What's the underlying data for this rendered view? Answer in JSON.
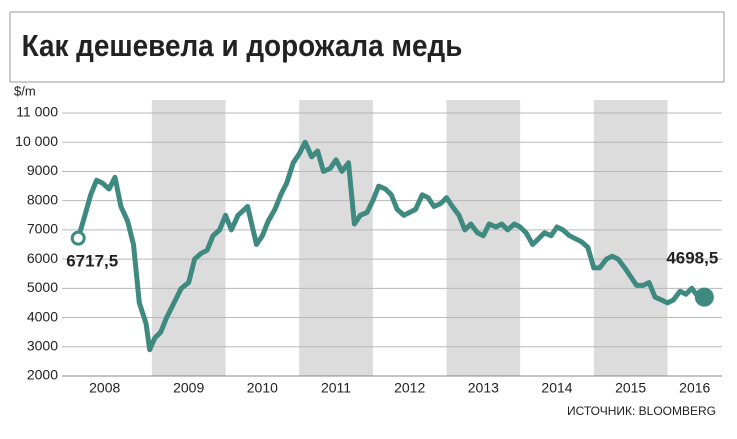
{
  "chart_data": {
    "type": "line",
    "title": "Как дешевела и дорожала медь",
    "y_label": "$/m",
    "source": "ИСТОЧНИК: BLOOMBERG",
    "xlim": [
      2007.78,
      2016.74
    ],
    "ylim": [
      2000,
      11000
    ],
    "yticks": [
      {
        "value": 11000,
        "label": "11 000"
      },
      {
        "value": 10000,
        "label": "10 000"
      },
      9000,
      8000,
      7000,
      6000,
      5000,
      4000,
      3000,
      2000
    ],
    "xticks": [
      {
        "value": 2008.36,
        "label": "2008"
      },
      {
        "value": 2009.5,
        "label": "2009"
      },
      {
        "value": 2010.5,
        "label": "2010"
      },
      {
        "value": 2011.5,
        "label": "2011"
      },
      {
        "value": 2012.5,
        "label": "2012"
      },
      {
        "value": 2013.5,
        "label": "2013"
      },
      {
        "value": 2014.5,
        "label": "2014"
      },
      {
        "value": 2015.5,
        "label": "2015"
      },
      {
        "value": 2016.37,
        "label": "2016"
      }
    ],
    "shaded_years": [
      2009,
      2011,
      2013,
      2015
    ],
    "grid": true,
    "series": [
      {
        "color": "#3f8a80",
        "x": [
          2008.0,
          2008.08,
          2008.17,
          2008.25,
          2008.33,
          2008.42,
          2008.5,
          2008.58,
          2008.67,
          2008.75,
          2008.83,
          2008.92,
          2008.97,
          2009.04,
          2009.12,
          2009.2,
          2009.3,
          2009.4,
          2009.5,
          2009.58,
          2009.67,
          2009.75,
          2009.83,
          2009.92,
          2010.0,
          2010.08,
          2010.17,
          2010.3,
          2010.42,
          2010.5,
          2010.58,
          2010.67,
          2010.75,
          2010.83,
          2010.92,
          2011.0,
          2011.08,
          2011.17,
          2011.25,
          2011.33,
          2011.42,
          2011.5,
          2011.58,
          2011.67,
          2011.75,
          2011.83,
          2011.92,
          2012.0,
          2012.08,
          2012.17,
          2012.25,
          2012.33,
          2012.42,
          2012.5,
          2012.58,
          2012.67,
          2012.75,
          2012.83,
          2012.92,
          2013.0,
          2013.08,
          2013.17,
          2013.25,
          2013.33,
          2013.42,
          2013.5,
          2013.58,
          2013.67,
          2013.75,
          2013.83,
          2013.92,
          2014.0,
          2014.08,
          2014.17,
          2014.25,
          2014.33,
          2014.42,
          2014.5,
          2014.58,
          2014.67,
          2014.75,
          2014.83,
          2014.92,
          2015.0,
          2015.08,
          2015.17,
          2015.25,
          2015.33,
          2015.42,
          2015.5,
          2015.58,
          2015.67,
          2015.75,
          2015.83,
          2015.92,
          2016.0,
          2016.08,
          2016.17,
          2016.25,
          2016.33,
          2016.42,
          2016.5
        ],
        "values": [
          6717.5,
          7400,
          8200,
          8700,
          8600,
          8400,
          8800,
          7800,
          7300,
          6500,
          4500,
          3800,
          2900,
          3300,
          3500,
          4000,
          4500,
          5000,
          5200,
          6000,
          6200,
          6300,
          6800,
          7000,
          7500,
          7000,
          7500,
          7800,
          6500,
          6800,
          7300,
          7700,
          8200,
          8600,
          9300,
          9600,
          10000,
          9500,
          9700,
          9000,
          9100,
          9400,
          9000,
          9300,
          7200,
          7500,
          7600,
          8000,
          8500,
          8400,
          8200,
          7700,
          7500,
          7600,
          7700,
          8200,
          8100,
          7800,
          7900,
          8100,
          7800,
          7500,
          7000,
          7200,
          6900,
          6800,
          7200,
          7100,
          7200,
          7000,
          7200,
          7100,
          6900,
          6500,
          6700,
          6900,
          6800,
          7100,
          7000,
          6800,
          6700,
          6600,
          6400,
          5700,
          5700,
          6000,
          6100,
          6000,
          5700,
          5400,
          5100,
          5100,
          5200,
          4700,
          4600,
          4500,
          4600,
          4900,
          4800,
          5000,
          4700,
          4698.5
        ]
      }
    ],
    "annotations": [
      {
        "x": 2008.0,
        "y": 6717.5,
        "label": "6717,5",
        "filled": false
      },
      {
        "x": 2016.5,
        "y": 4698.5,
        "label": "4698,5",
        "filled": true
      }
    ]
  }
}
